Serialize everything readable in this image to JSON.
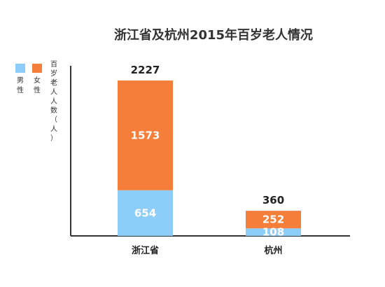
{
  "chart_data": {
    "type": "bar",
    "stacked": true,
    "title": "浙江省及杭州2015年百岁老人情况",
    "ylabel": "百岁老人人数（人）",
    "categories": [
      "浙江省",
      "杭州"
    ],
    "series": [
      {
        "name": "男性",
        "values": [
          654,
          108
        ],
        "color": "#8dcdf9"
      },
      {
        "name": "女性",
        "values": [
          1573,
          252
        ],
        "color": "#f57f3a"
      }
    ],
    "totals": [
      2227,
      360
    ],
    "ylim": [
      0,
      2227
    ],
    "legend_position": "top-left",
    "grid": false
  }
}
